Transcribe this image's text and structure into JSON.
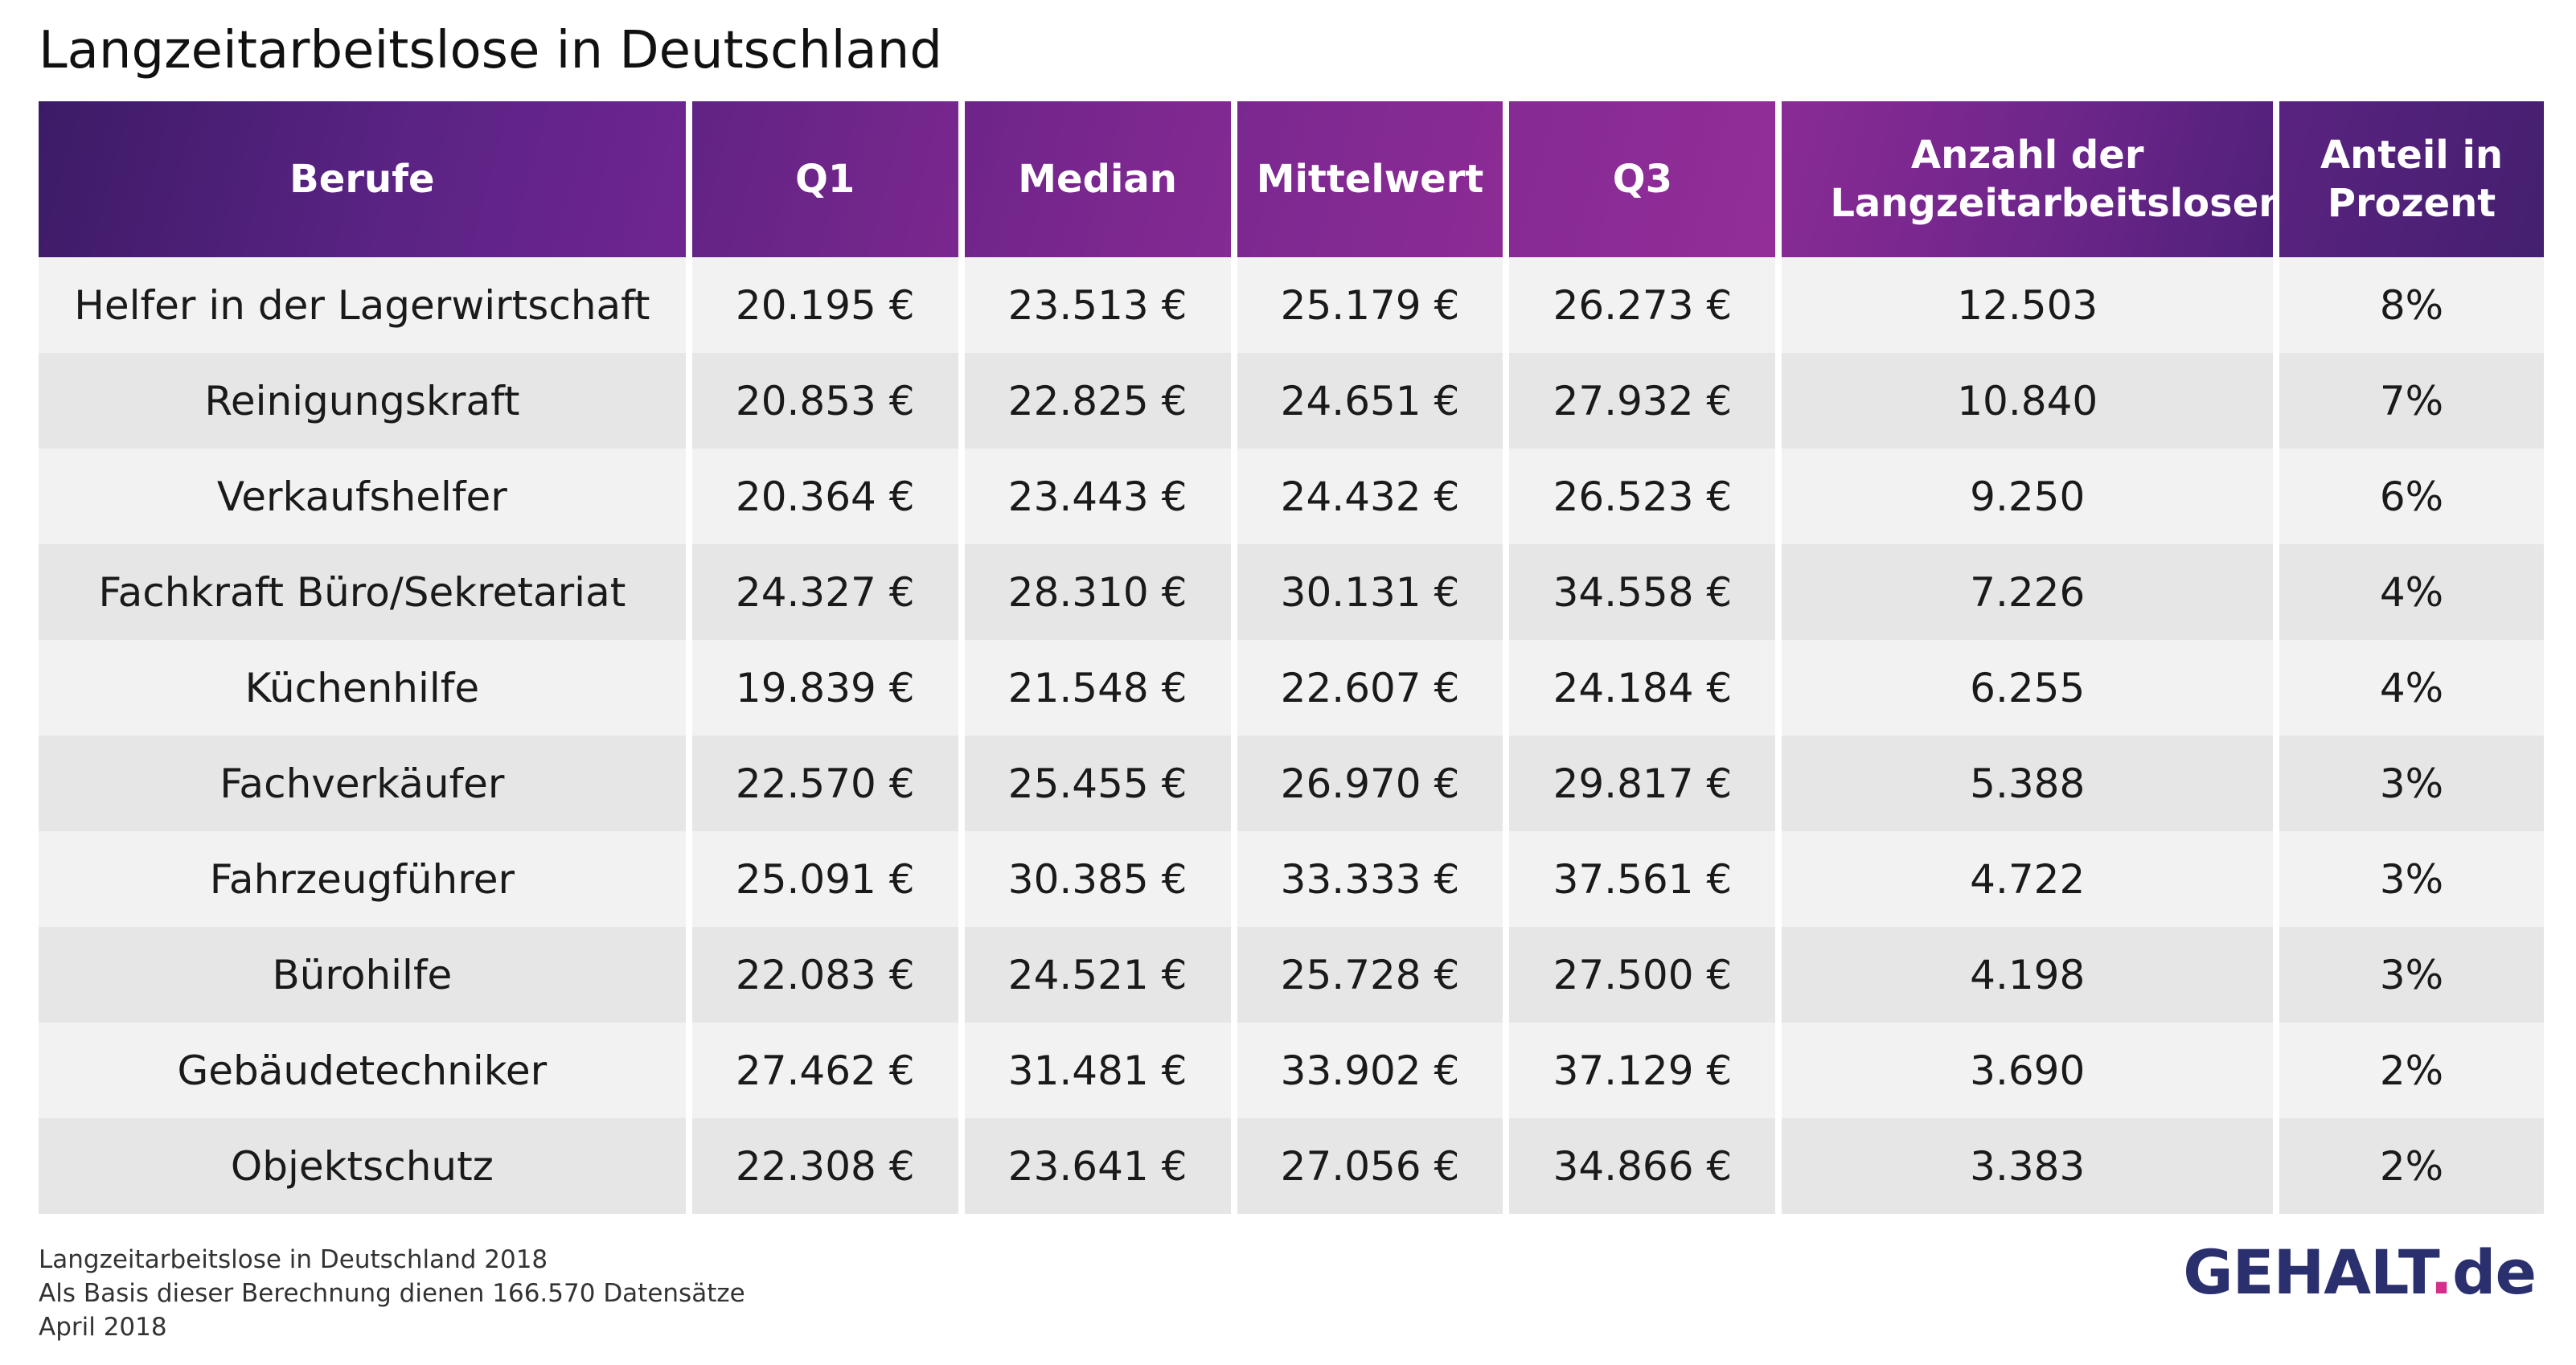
{
  "title": "Langzeitarbeitslose in Deutschland",
  "chart_data": {
    "type": "table",
    "columns": [
      "Berufe",
      "Q1",
      "Median",
      "Mittelwert",
      "Q3",
      "Anzahl der Langzeitarbeitslosen",
      "Anteil in Prozent"
    ],
    "rows": [
      [
        "Helfer in der Lagerwirtschaft",
        "20.195 €",
        "23.513 €",
        "25.179 €",
        "26.273 €",
        "12.503",
        "8%"
      ],
      [
        "Reinigungskraft",
        "20.853 €",
        "22.825 €",
        "24.651 €",
        "27.932 €",
        "10.840",
        "7%"
      ],
      [
        "Verkaufshelfer",
        "20.364 €",
        "23.443 €",
        "24.432 €",
        "26.523 €",
        "9.250",
        "6%"
      ],
      [
        "Fachkraft Büro/Sekretariat",
        "24.327 €",
        "28.310 €",
        "30.131 €",
        "34.558 €",
        "7.226",
        "4%"
      ],
      [
        "Küchenhilfe",
        "19.839 €",
        "21.548 €",
        "22.607 €",
        "24.184 €",
        "6.255",
        "4%"
      ],
      [
        "Fachverkäufer",
        "22.570 €",
        "25.455 €",
        "26.970 €",
        "29.817 €",
        "5.388",
        "3%"
      ],
      [
        "Fahrzeugführer",
        "25.091 €",
        "30.385 €",
        "33.333 €",
        "37.561 €",
        "4.722",
        "3%"
      ],
      [
        "Bürohilfe",
        "22.083 €",
        "24.521 €",
        "25.728 €",
        "27.500 €",
        "4.198",
        "3%"
      ],
      [
        "Gebäudetechniker",
        "27.462 €",
        "31.481 €",
        "33.902 €",
        "37.129 €",
        "3.690",
        "2%"
      ],
      [
        "Objektschutz",
        "22.308 €",
        "23.641 €",
        "27.056 €",
        "34.866 €",
        "3.383",
        "2%"
      ]
    ]
  },
  "footer": {
    "line1": "Langzeitarbeitslose in Deutschland 2018",
    "line2": "Als Basis dieser Berechnung dienen 166.570 Datensätze",
    "line3": "April 2018"
  },
  "logo": {
    "main": "GEHALT",
    "dot": ".",
    "tld": "de"
  },
  "colors": {
    "header_purple": "#6b2489",
    "logo_navy": "#2a2f6e",
    "logo_accent": "#d42f8a"
  }
}
